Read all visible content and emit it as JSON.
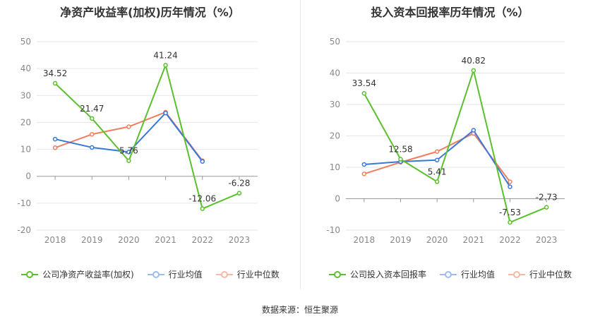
{
  "source_label": "数据来源：恒生聚源",
  "colors": {
    "company": "#5cbf2e",
    "avg": "#3a78d8",
    "median": "#ee7f5f",
    "grid": "#e6e6e6",
    "axis_text": "#888888"
  },
  "chart_data": [
    {
      "type": "line",
      "title": "净资产收益率(加权)历年情况（%）",
      "categories": [
        "2018",
        "2019",
        "2020",
        "2021",
        "2022",
        "2023"
      ],
      "yticks": [
        "50",
        "40",
        "30",
        "20",
        "10",
        "0",
        "-10",
        "-20"
      ],
      "ylim": [
        -20,
        50
      ],
      "grid": true,
      "legend_position": "bottom",
      "series": [
        {
          "name": "公司净资产收益率(加权)",
          "key": "company",
          "values": [
            34.52,
            21.47,
            5.76,
            41.24,
            -12.06,
            -6.28
          ],
          "labels": [
            "34.52",
            "21.47",
            "5.76",
            "41.24",
            "-12.06",
            "-6.28"
          ]
        },
        {
          "name": "行业均值",
          "key": "avg",
          "values": [
            13.8,
            10.7,
            9.0,
            23.5,
            5.5,
            null
          ]
        },
        {
          "name": "行业中位数",
          "key": "median",
          "values": [
            10.6,
            15.6,
            18.4,
            23.8,
            5.8,
            null
          ]
        }
      ]
    },
    {
      "type": "line",
      "title": "投入资本回报率历年情况（%）",
      "categories": [
        "2018",
        "2019",
        "2020",
        "2021",
        "2022",
        "2023"
      ],
      "yticks": [
        "50",
        "40",
        "30",
        "20",
        "10",
        "0",
        "-10"
      ],
      "ylim": [
        -10,
        50
      ],
      "grid": true,
      "legend_position": "bottom",
      "series": [
        {
          "name": "公司投入资本回报率",
          "key": "company",
          "values": [
            33.54,
            12.58,
            5.41,
            40.82,
            -7.53,
            -2.73
          ],
          "labels": [
            "33.54",
            "12.58",
            "5.41",
            "40.82",
            "-7.53",
            "-2.73"
          ]
        },
        {
          "name": "行业均值",
          "key": "avg",
          "values": [
            10.9,
            11.8,
            12.3,
            21.8,
            3.8,
            null
          ]
        },
        {
          "name": "行业中位数",
          "key": "median",
          "values": [
            7.9,
            11.6,
            15.0,
            20.8,
            5.4,
            null
          ]
        }
      ]
    }
  ]
}
